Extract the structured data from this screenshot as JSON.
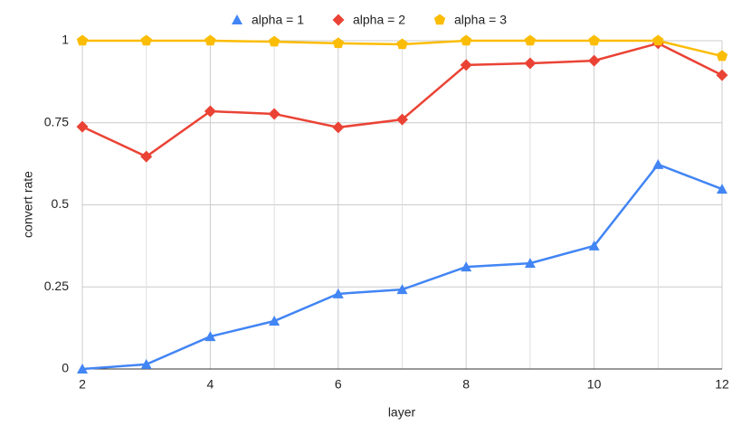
{
  "chart_data": {
    "type": "line",
    "x_label": "layer",
    "y_label": "convert rate",
    "x": [
      2,
      3,
      4,
      5,
      6,
      7,
      8,
      9,
      10,
      11,
      12
    ],
    "series": [
      {
        "name": "alpha = 1",
        "color": "#4285f4",
        "marker": "triangle",
        "values": [
          0,
          0.014,
          0.099,
          0.146,
          0.229,
          0.242,
          0.311,
          0.322,
          0.375,
          0.623,
          0.548
        ]
      },
      {
        "name": "alpha = 2",
        "color": "#ea4335",
        "marker": "diamond",
        "values": [
          0.738,
          0.647,
          0.785,
          0.777,
          0.736,
          0.76,
          0.926,
          0.931,
          0.939,
          0.992,
          0.895
        ]
      },
      {
        "name": "alpha = 3",
        "color": "#fbbc04",
        "marker": "pentagon",
        "values": [
          1,
          1,
          1,
          0.997,
          0.992,
          0.989,
          1,
          1,
          1,
          1,
          0.953
        ]
      }
    ],
    "xlim": [
      2,
      12
    ],
    "xticks": [
      2,
      4,
      6,
      8,
      10,
      12
    ],
    "ylim": [
      0,
      1
    ],
    "yticks": [
      0,
      0.25,
      0.5,
      0.75,
      1
    ],
    "grid": true,
    "minor_grid": true,
    "legend": "top"
  }
}
